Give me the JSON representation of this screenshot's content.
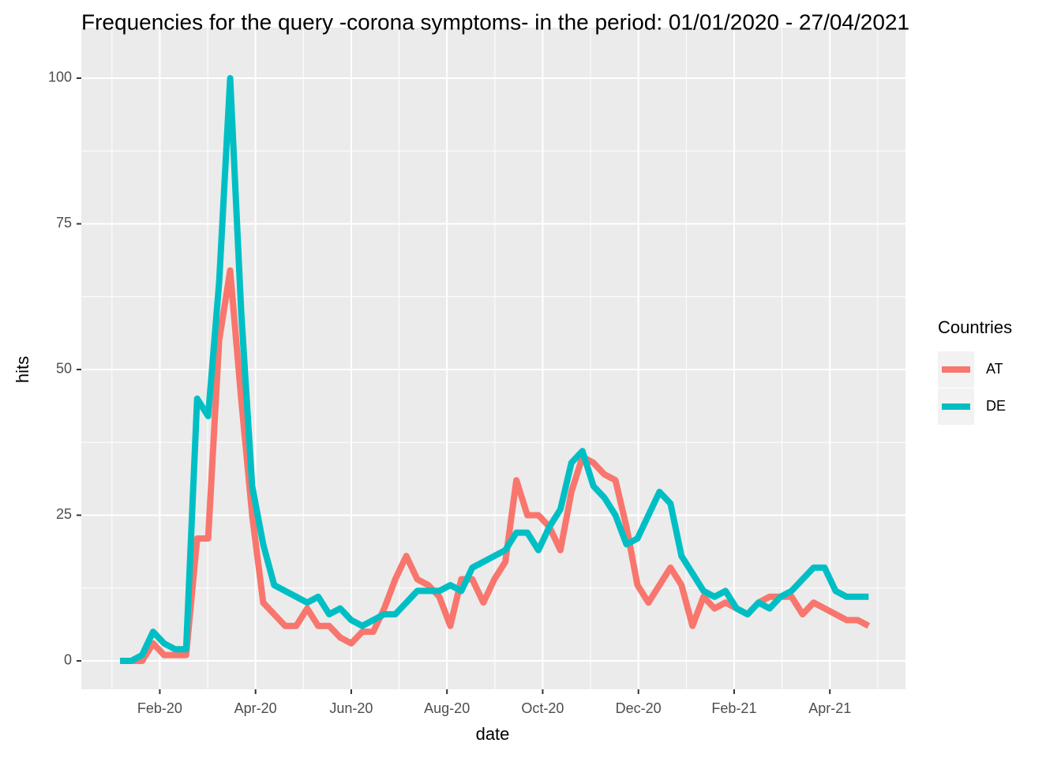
{
  "chart_data": {
    "type": "line",
    "title": "Frequencies for the query -corona symptoms- in the period: 01/01/2020 - 27/04/2021",
    "x_label": "date",
    "y_label": "hits",
    "legend_title": "Countries",
    "grid": true,
    "x": [
      0.17,
      0.4,
      0.63,
      0.86,
      1.09,
      1.32,
      1.55,
      1.78,
      2.01,
      2.24,
      2.47,
      2.7,
      2.93,
      3.16,
      3.39,
      3.62,
      3.85,
      4.08,
      4.31,
      4.54,
      4.77,
      5.0,
      5.23,
      5.46,
      5.69,
      5.92,
      6.15,
      6.38,
      6.61,
      6.84,
      7.07,
      7.3,
      7.53,
      7.76,
      7.99,
      8.22,
      8.45,
      8.68,
      8.91,
      9.14,
      9.37,
      9.6,
      9.83,
      10.06,
      10.29,
      10.52,
      10.75,
      10.98,
      11.21,
      11.44,
      11.67,
      11.9,
      12.13,
      12.36,
      12.59,
      12.82,
      13.05,
      13.28,
      13.51,
      13.74,
      13.97,
      14.2,
      14.43,
      14.66,
      14.89,
      15.12,
      15.35,
      15.58,
      15.81
    ],
    "series": [
      {
        "name": "AT",
        "color": "#F8766D",
        "values": [
          0,
          0,
          0,
          3,
          1,
          1,
          1,
          21,
          21,
          55,
          67,
          45,
          25,
          10,
          8,
          6,
          6,
          9,
          6,
          6,
          4,
          3,
          5,
          5,
          9,
          14,
          18,
          14,
          13,
          11,
          6,
          14,
          14,
          10,
          14,
          17,
          31,
          25,
          25,
          23,
          19,
          29,
          35,
          34,
          32,
          31,
          23,
          13,
          10,
          13,
          16,
          13,
          6,
          11,
          9,
          10,
          9,
          8,
          10,
          11,
          11,
          11,
          8,
          10,
          9,
          8,
          7,
          7,
          6
        ]
      },
      {
        "name": "DE",
        "color": "#00BFC4",
        "values": [
          0,
          0,
          1,
          5,
          3,
          2,
          2,
          45,
          42,
          65,
          100,
          60,
          30,
          20,
          13,
          12,
          11,
          10,
          11,
          8,
          9,
          7,
          6,
          7,
          8,
          8,
          10,
          12,
          12,
          12,
          13,
          12,
          16,
          17,
          18,
          19,
          22,
          22,
          19,
          23,
          26,
          34,
          36,
          30,
          28,
          25,
          20,
          21,
          25,
          29,
          27,
          18,
          15,
          12,
          11,
          12,
          9,
          8,
          10,
          9,
          11,
          12,
          14,
          16,
          16,
          12,
          11,
          11,
          11
        ]
      }
    ],
    "xlim": [
      -0.64,
      16.58
    ],
    "xticks": [
      {
        "value": 1,
        "label": "Feb-20"
      },
      {
        "value": 3,
        "label": "Apr-20"
      },
      {
        "value": 5,
        "label": "Jun-20"
      },
      {
        "value": 7,
        "label": "Aug-20"
      },
      {
        "value": 9,
        "label": "Oct-20"
      },
      {
        "value": 11,
        "label": "Dec-20"
      },
      {
        "value": 13,
        "label": "Feb-21"
      },
      {
        "value": 15,
        "label": "Apr-21"
      }
    ],
    "ylim": [
      -4.88,
      108.67
    ],
    "yticks": [
      0,
      25,
      50,
      75,
      100
    ]
  }
}
